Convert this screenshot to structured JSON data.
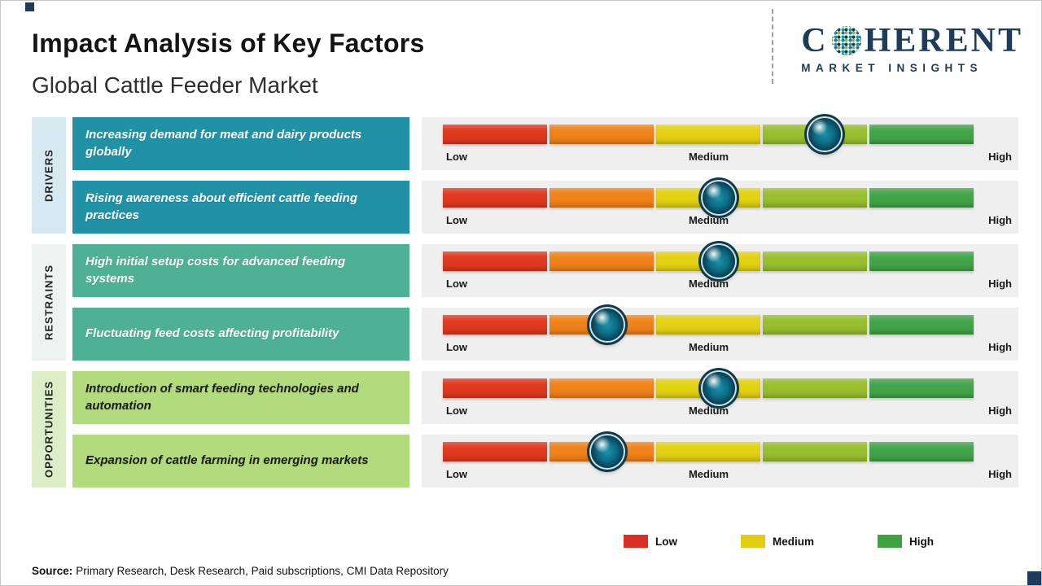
{
  "page": {
    "title": "Impact Analysis of Key Factors",
    "subtitle": "Global Cattle Feeder Market",
    "source_label": "Source:",
    "source_text": "Primary Research, Desk Research, Paid subscriptions, CMI Data Repository"
  },
  "logo": {
    "brand_prefix": "C",
    "brand_suffix": "HERENT",
    "tagline": "MARKET INSIGHTS",
    "brand_color": "#1d3b5a"
  },
  "chart_data": {
    "type": "rating-scale",
    "title": "Impact Analysis of Key Factors",
    "subtitle": "Global Cattle Feeder Market",
    "scale_labels": [
      "Low",
      "Medium",
      "High"
    ],
    "scale_range": [
      0,
      100
    ],
    "segment_colors": [
      "#e0391f",
      "#f08219",
      "#e3d213",
      "#98bf2e",
      "#42a449"
    ],
    "track_color": "#efefef",
    "groups": [
      {
        "name": "DRIVERS",
        "label_bg": "#d7e9f0",
        "box_bg": "#2191a5",
        "box_text_color": "#ffffff",
        "factors": [
          {
            "text": "Increasing demand for meat and dairy products globally",
            "impact_percent": 72,
            "impact_level": "Medium-High"
          },
          {
            "text": "Rising awareness about efficient cattle feeding practices",
            "impact_percent": 52,
            "impact_level": "Medium"
          }
        ]
      },
      {
        "name": "RESTRAINTS",
        "label_bg": "#eef3f1",
        "box_bg": "#4fb193",
        "box_text_color": "#ffffff",
        "factors": [
          {
            "text": "High initial setup costs for advanced feeding systems",
            "impact_percent": 52,
            "impact_level": "Medium"
          },
          {
            "text": "Fluctuating feed costs affecting profitability",
            "impact_percent": 31,
            "impact_level": "Low-Medium"
          }
        ]
      },
      {
        "name": "OPPORTUNITIES",
        "label_bg": "#dbeec7",
        "box_bg": "#b2db7e",
        "box_text_color": "#1c1c1c",
        "factors": [
          {
            "text": "Introduction of smart feeding technologies and automation",
            "impact_percent": 52,
            "impact_level": "Medium"
          },
          {
            "text": "Expansion of cattle farming in emerging markets",
            "impact_percent": 31,
            "impact_level": "Low-Medium"
          }
        ]
      }
    ],
    "legend": [
      {
        "label": "Low",
        "color": "#d93025"
      },
      {
        "label": "Medium",
        "color": "#e3cd10"
      },
      {
        "label": "High",
        "color": "#3fa13f"
      }
    ],
    "legend_position": "bottom-right"
  }
}
